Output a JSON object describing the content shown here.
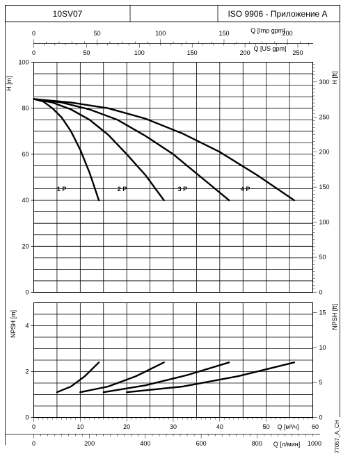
{
  "header": {
    "model": "10SV07",
    "middle": "",
    "standard": "ISO 9906 - Приложение A"
  },
  "chart_data": [
    {
      "type": "line",
      "name": "head",
      "ylabel": "H [m]",
      "ylabel_right": "H [ft]",
      "ylim": [
        0,
        100
      ],
      "yticks": [
        0,
        20,
        40,
        60,
        80,
        100
      ],
      "right_ticks": [
        0,
        50,
        100,
        150,
        200,
        250,
        300
      ],
      "xlim": [
        0,
        60
      ],
      "grid": true,
      "series": [
        {
          "name": "1 P",
          "x": [
            0,
            2,
            4,
            6,
            8,
            10,
            12,
            14
          ],
          "y": [
            84,
            83,
            80,
            76,
            70,
            62,
            52,
            40
          ]
        },
        {
          "name": "2 P",
          "x": [
            0,
            4,
            8,
            12,
            16,
            20,
            24,
            28
          ],
          "y": [
            84,
            82.5,
            79.5,
            75,
            68.5,
            60,
            51,
            40
          ]
        },
        {
          "name": "3 P",
          "x": [
            0,
            6,
            12,
            18,
            24,
            30,
            36,
            42
          ],
          "y": [
            84,
            82.5,
            79.5,
            75,
            68,
            60,
            50,
            40
          ]
        },
        {
          "name": "4 P",
          "x": [
            0,
            8,
            16,
            24,
            32,
            40,
            48,
            56
          ],
          "y": [
            84,
            82.5,
            80,
            75.5,
            69,
            61,
            51,
            40
          ]
        }
      ],
      "labels": [
        {
          "text": "1 P",
          "x": 6,
          "y": 44
        },
        {
          "text": "2 P",
          "x": 19,
          "y": 44
        },
        {
          "text": "3 P",
          "x": 32,
          "y": 44
        },
        {
          "text": "4 P",
          "x": 45.5,
          "y": 44
        }
      ]
    },
    {
      "type": "line",
      "name": "npsh",
      "ylabel": "NPSH [m]",
      "ylabel_right": "NPSH [ft]",
      "ylim": [
        0,
        5
      ],
      "yticks": [
        0,
        2,
        4
      ],
      "right_ticks": [
        0,
        5,
        10,
        15
      ],
      "xlim": [
        0,
        60
      ],
      "grid": true,
      "series": [
        {
          "name": "1 P",
          "x": [
            5,
            8,
            11,
            14
          ],
          "y": [
            1.1,
            1.35,
            1.8,
            2.4
          ]
        },
        {
          "name": "2 P",
          "x": [
            10,
            16,
            22,
            28
          ],
          "y": [
            1.1,
            1.35,
            1.8,
            2.4
          ]
        },
        {
          "name": "3 P",
          "x": [
            15,
            24,
            33,
            42
          ],
          "y": [
            1.1,
            1.4,
            1.85,
            2.4
          ]
        },
        {
          "name": "4 P",
          "x": [
            20,
            32,
            44,
            56
          ],
          "y": [
            1.1,
            1.35,
            1.8,
            2.4
          ]
        }
      ]
    }
  ],
  "axes": {
    "imp": {
      "label": "Q [Imp gpm]",
      "ticks": [
        0,
        50,
        100,
        150,
        200
      ],
      "max": 219.96
    },
    "us": {
      "label": "Q [US gpm]",
      "ticks": [
        0,
        50,
        100,
        150,
        200,
        250
      ],
      "max": 264.17
    },
    "m3h": {
      "label": "Q [м³/ч]",
      "ticks": [
        0,
        10,
        20,
        30,
        40,
        50
      ],
      "extra_tick": "60",
      "max": 60
    },
    "lmin": {
      "label": "Q [л/мин]",
      "ticks": [
        0,
        200,
        400,
        600,
        800
      ],
      "extra_tick": "1000",
      "max": 1000
    }
  },
  "footer_code": "77057_A_CH"
}
